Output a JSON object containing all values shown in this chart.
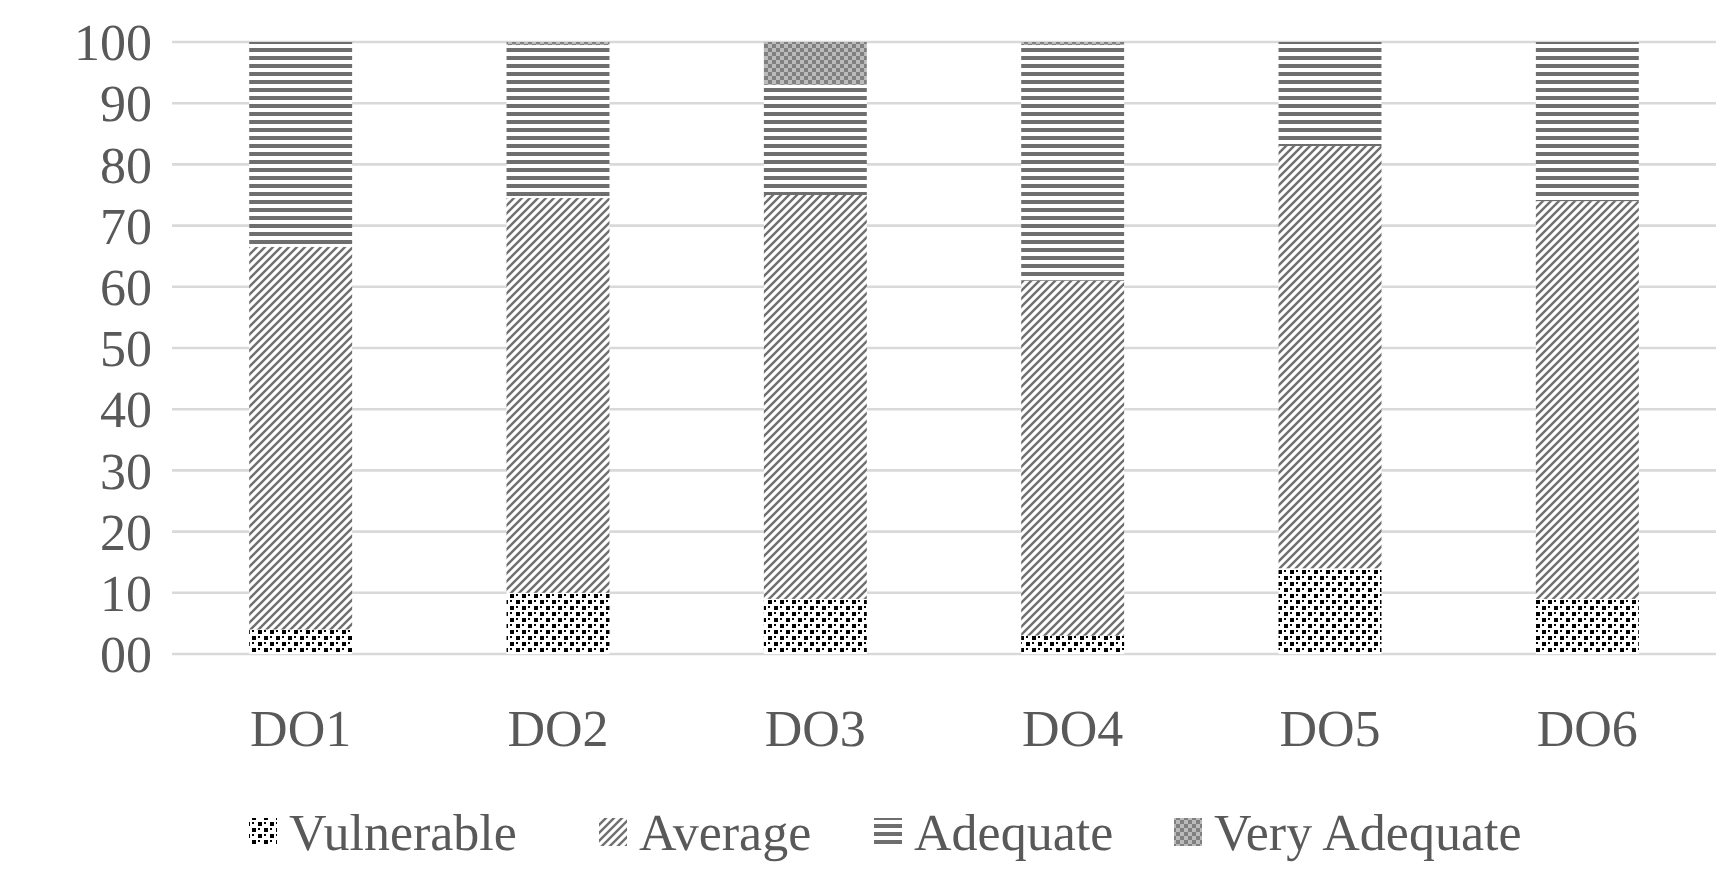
{
  "chart_data": {
    "type": "bar",
    "stacked": true,
    "categories": [
      "DO1",
      "DO2",
      "DO3",
      "DO4",
      "DO5",
      "DO6"
    ],
    "series": [
      {
        "name": "Vulnerable",
        "color": "#000000",
        "values": [
          4,
          10,
          9,
          3,
          14,
          9
        ]
      },
      {
        "name": "Average",
        "color": "#707070",
        "values": [
          62.5,
          64.5,
          66,
          58,
          69,
          65
        ]
      },
      {
        "name": "Adequate",
        "color": "#6e6e6e",
        "values": [
          33.5,
          25,
          18,
          38.5,
          17,
          26
        ]
      },
      {
        "name": "Very Adequate",
        "color": "#808080",
        "values": [
          0,
          0.5,
          7,
          0.5,
          0,
          0
        ]
      }
    ],
    "ylim": [
      0,
      100
    ],
    "yticks": [
      {
        "value": 0,
        "label": "00"
      },
      10,
      20,
      30,
      40,
      50,
      60,
      70,
      80,
      90,
      100
    ],
    "grid": "y",
    "legend": "bottom"
  }
}
